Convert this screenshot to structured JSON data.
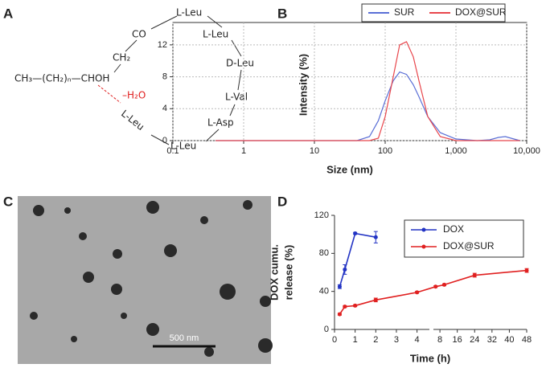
{
  "panel_labels": [
    "A",
    "B",
    "C",
    "D"
  ],
  "panel_a": {
    "chain": "CH₃—(CH₂)ₙ—CHOH",
    "ch2": "CH₂",
    "co": "CO",
    "water": "–H₂O",
    "residues": [
      "L-Leu",
      "L-Leu",
      "D-Leu",
      "L-Val",
      "L-Asp",
      "L-Leu",
      "L-Leu"
    ]
  },
  "panel_c": {
    "scale_bar": "500 nm"
  },
  "chart_data": [
    {
      "type": "line",
      "x_label": "Size (nm)",
      "y_label": "Intensity (%)",
      "xscale": "log",
      "grid": true,
      "legend": "top",
      "x": [
        0.4,
        1,
        10,
        40,
        60,
        80,
        100,
        130,
        160,
        200,
        250,
        300,
        400,
        600,
        1000,
        2000,
        3000,
        4000,
        5000,
        6000,
        8000
      ],
      "xlim": [
        0.1,
        10000
      ],
      "xticks": [
        0.1,
        1,
        10,
        100,
        {
          "value": 1000,
          "label": "1,000"
        },
        {
          "value": 10000,
          "label": "10,000"
        }
      ],
      "ylim": [
        0,
        14
      ],
      "yticks": [
        0,
        4,
        8,
        12
      ],
      "series": [
        {
          "name": "SUR",
          "color": "#5a6fd6",
          "values": [
            0,
            0,
            0,
            0,
            0.5,
            2.5,
            5,
            7.5,
            8.6,
            8.3,
            7,
            5.5,
            3,
            1,
            0.2,
            0,
            0.1,
            0.4,
            0.5,
            0.3,
            0
          ]
        },
        {
          "name": "DOX@SUR",
          "color": "#e8464c",
          "values": [
            0,
            0,
            0,
            0,
            0,
            0.3,
            3,
            8,
            12,
            12.4,
            10.5,
            7.5,
            3,
            0.5,
            0,
            0,
            0,
            0,
            0,
            0,
            0
          ]
        }
      ]
    },
    {
      "type": "line",
      "x_label": "Time (h)",
      "y_label": [
        "DOX cumu.",
        "release (%)"
      ],
      "legend": "upper right",
      "x_segments": [
        {
          "xlim": [
            0,
            4.6
          ],
          "xticks": [
            0,
            1,
            2,
            3,
            4
          ]
        },
        {
          "xlim": [
            5,
            48
          ],
          "xticks": [
            8,
            16,
            24,
            32,
            40,
            48
          ]
        }
      ],
      "ylim": [
        0,
        120
      ],
      "yticks": [
        0,
        40,
        80,
        120
      ],
      "series": [
        {
          "name": "DOX",
          "color": "#2233c4",
          "x": [
            0.25,
            0.5,
            1,
            2
          ],
          "values": [
            45,
            63,
            101,
            97
          ],
          "errors": [
            2,
            5,
            1,
            6
          ]
        },
        {
          "name": "DOX@SUR",
          "color": "#e02020",
          "x": [
            0.25,
            0.5,
            1,
            2,
            4,
            6,
            10,
            24,
            48
          ],
          "values": [
            16,
            24,
            25,
            31,
            39,
            45,
            47,
            57,
            62
          ],
          "errors": [
            1,
            1,
            1,
            2,
            1,
            1,
            1,
            2,
            2
          ]
        }
      ]
    }
  ]
}
